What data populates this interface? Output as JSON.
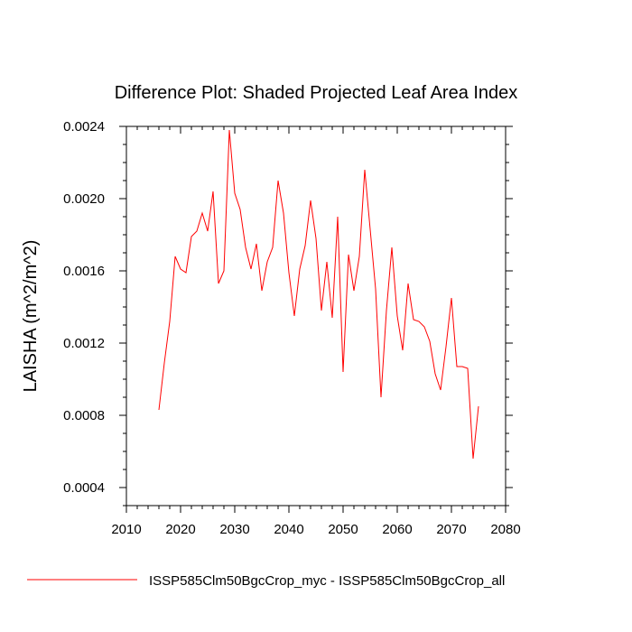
{
  "chart_data": {
    "type": "line",
    "title": "Difference Plot: Shaded Projected Leaf Area Index",
    "ylabel": "LAISHA  (m^2/m^2)",
    "xlabel": "",
    "xlim": [
      2010,
      2080
    ],
    "ylim": [
      0.0003,
      0.0024
    ],
    "xticks": [
      2010,
      2020,
      2030,
      2040,
      2050,
      2060,
      2070,
      2080
    ],
    "yticks": [
      "0.0004",
      "0.0008",
      "0.0012",
      "0.0016",
      "0.0020",
      "0.0024"
    ],
    "legend_position": "bottom",
    "grid": false,
    "series": [
      {
        "name": "ISSP585Clm50BgcCrop_myc - ISSP585Clm50BgcCrop_all",
        "color": "#ff0000",
        "x": [
          2016,
          2017,
          2018,
          2019,
          2020,
          2021,
          2022,
          2023,
          2024,
          2025,
          2026,
          2027,
          2028,
          2029,
          2030,
          2031,
          2032,
          2033,
          2034,
          2035,
          2036,
          2037,
          2038,
          2039,
          2040,
          2041,
          2042,
          2043,
          2044,
          2045,
          2046,
          2047,
          2048,
          2049,
          2050,
          2051,
          2052,
          2053,
          2054,
          2055,
          2056,
          2057,
          2058,
          2059,
          2060,
          2061,
          2062,
          2063,
          2064,
          2065,
          2066,
          2067,
          2068,
          2069,
          2070,
          2071,
          2072,
          2073,
          2074,
          2075
        ],
        "y": [
          0.00083,
          0.00109,
          0.00132,
          0.00168,
          0.00161,
          0.00159,
          0.00179,
          0.00182,
          0.00192,
          0.00182,
          0.00204,
          0.00153,
          0.0016,
          0.00238,
          0.00203,
          0.00194,
          0.00173,
          0.00161,
          0.00175,
          0.00149,
          0.00165,
          0.00173,
          0.0021,
          0.00192,
          0.00159,
          0.00135,
          0.00161,
          0.00174,
          0.00199,
          0.00178,
          0.00138,
          0.00165,
          0.00134,
          0.0019,
          0.00104,
          0.00169,
          0.00149,
          0.00168,
          0.00216,
          0.00183,
          0.0015,
          0.0009,
          0.00138,
          0.00173,
          0.00135,
          0.00116,
          0.00153,
          0.00133,
          0.00132,
          0.00129,
          0.00121,
          0.00103,
          0.00094,
          0.00118,
          0.00145,
          0.00107,
          0.00107,
          0.00106,
          0.00056,
          0.00085
        ]
      }
    ]
  }
}
